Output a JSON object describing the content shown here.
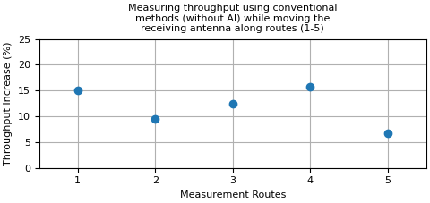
{
  "chart_data": {
    "type": "scatter",
    "title": "Measuring throughput using conventional\nmethods (without AI) while moving the\nreceiving antenna along routes (1-5)",
    "x_label": "Measurement Routes",
    "y_label": "Throughput Increase (%)",
    "x": [
      1,
      2,
      3,
      4,
      5
    ],
    "values": [
      15.0,
      9.4,
      12.5,
      15.7,
      6.7
    ],
    "xlim": [
      0.5,
      5.5
    ],
    "xticks": [
      1,
      2,
      3,
      4,
      5
    ],
    "ylim": [
      0,
      25
    ],
    "yticks": [
      0,
      5,
      10,
      15,
      20,
      25
    ],
    "grid": true
  }
}
